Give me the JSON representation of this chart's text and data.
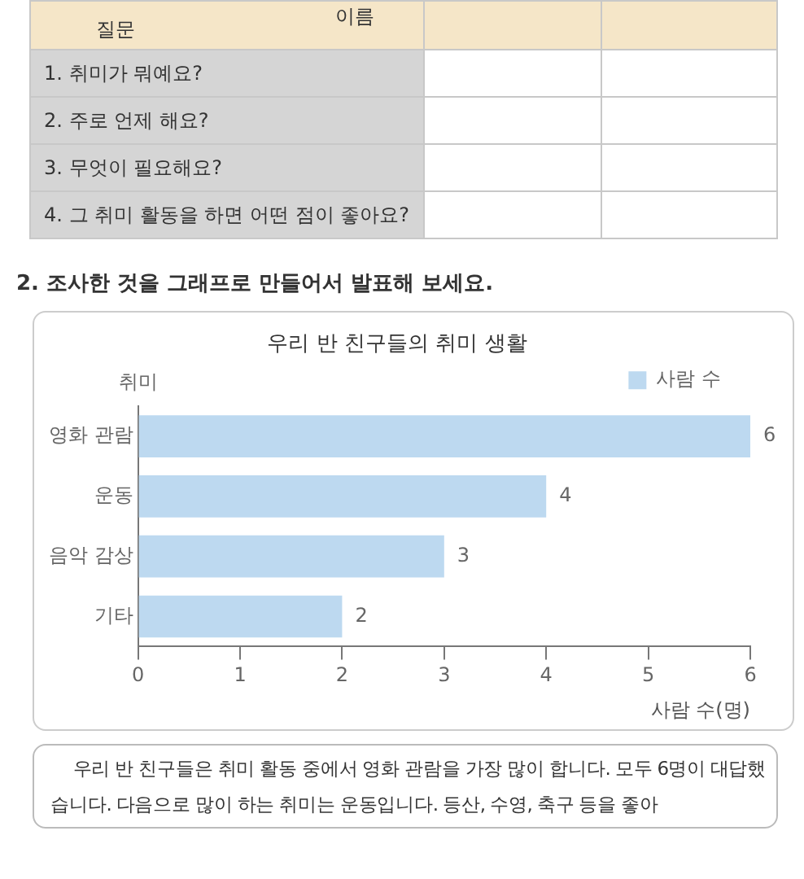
{
  "chart_data": [
    {
      "type": "other",
      "annotations": [
        "질문",
        "이름",
        "1. 취미가 뭐예요?",
        "2. 주로 언제 해요?",
        "3. 무엇이 필요해요?",
        "4. 그 취미 활동을 하면 어떤 점이 좋아요?"
      ]
    },
    {
      "type": "bar",
      "orientation": "horizontal",
      "title": "우리 반 친구들의 취미 생활",
      "annotations": [
        "2. 조사한 것을 그래프로 만들어서 발표해 보세요."
      ],
      "xlabel": "사람 수(명)",
      "ylabel": "취미",
      "categories": [
        "영화 관람",
        "운동",
        "음악 감상",
        "기타"
      ],
      "series": [
        {
          "name": "사람 수",
          "color": "#bdd9f0",
          "values": [
            6,
            4,
            3,
            2
          ]
        }
      ],
      "xlim": [
        0,
        6
      ],
      "xticks": [
        0,
        1,
        2,
        3,
        4,
        5,
        6
      ],
      "data_labels": true,
      "legend": "top right",
      "grid": false
    },
    {
      "type": "other",
      "annotations": [
        "우리 반 친구들은 취미 활동 중에서 영화 관람을 가장 많이 합니다. 모두 6명이 대답했습니다. 다음으로 많이 하는 취미는 운동입니다. 등산, 수영, 축구 등을 좋아"
      ]
    }
  ]
}
